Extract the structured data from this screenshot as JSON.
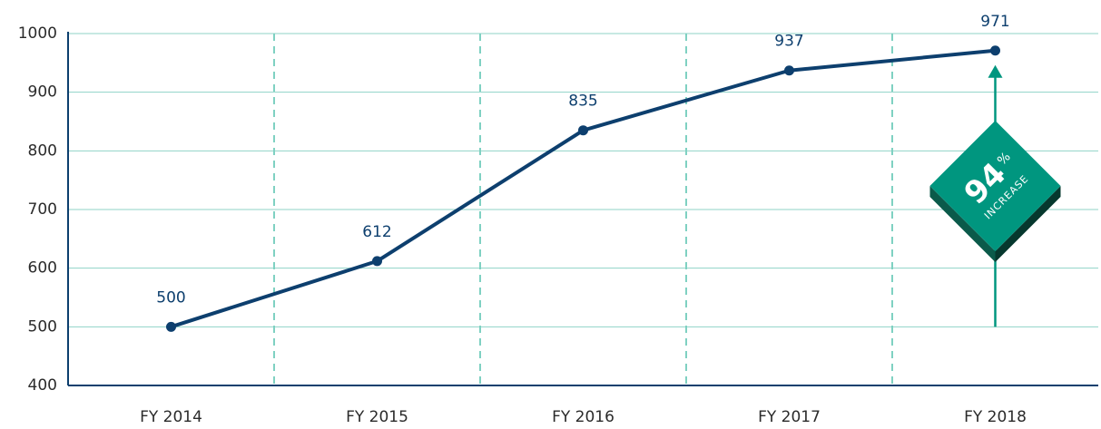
{
  "chart_data": {
    "type": "line",
    "categories": [
      "FY 2014",
      "FY 2015",
      "FY 2016",
      "FY 2017",
      "FY 2018"
    ],
    "values": [
      500,
      612,
      835,
      937,
      971
    ],
    "color": "#0d3f6e",
    "ylim": [
      400,
      1000
    ],
    "yticks": [
      400,
      500,
      600,
      700,
      800,
      900,
      1000
    ],
    "grid": true,
    "annotation": {
      "number": "94",
      "unit": "%",
      "text": "INCREASE"
    }
  }
}
